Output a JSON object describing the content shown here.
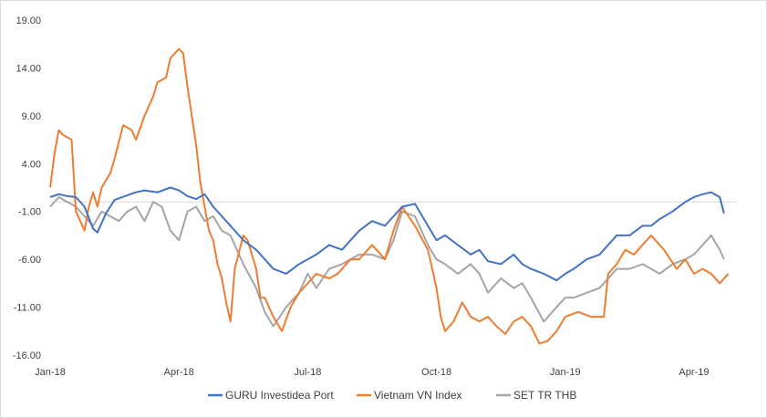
{
  "chart_data": {
    "type": "line",
    "title": "",
    "xlabel": "",
    "ylabel": "",
    "ylim": [
      -16,
      19
    ],
    "yticks": [
      19.0,
      14.0,
      9.0,
      4.0,
      -1.0,
      -6.0,
      -11.0,
      -16.0
    ],
    "ytick_labels": [
      "19.00",
      "14.00",
      "9.00",
      "4.00",
      "-1.00",
      "-6.00",
      "-11.00",
      "-16.00"
    ],
    "xlim": [
      0,
      16
    ],
    "xticks": [
      0,
      3,
      6,
      9,
      12,
      15
    ],
    "xtick_labels": [
      "Jan-18",
      "Apr-18",
      "Jul-18",
      "Oct-18",
      "Jan-19",
      "Apr-19"
    ],
    "zero_line": 0,
    "legend_position": "bottom",
    "colors": [
      "#4472C4",
      "#ED7D31",
      "#A5A5A5"
    ],
    "series": [
      {
        "name": "GURU Investidea Port",
        "color": "#4472C4",
        "x": [
          0,
          0.2,
          0.4,
          0.6,
          0.8,
          1.0,
          1.1,
          1.3,
          1.5,
          1.8,
          2.0,
          2.2,
          2.5,
          2.8,
          3.0,
          3.2,
          3.4,
          3.6,
          3.8,
          4.0,
          4.2,
          4.5,
          4.8,
          5.0,
          5.2,
          5.5,
          5.8,
          6.0,
          6.2,
          6.5,
          6.8,
          7.0,
          7.2,
          7.5,
          7.8,
          8.0,
          8.2,
          8.5,
          8.8,
          9.0,
          9.2,
          9.5,
          9.8,
          10.0,
          10.2,
          10.5,
          10.8,
          11.0,
          11.2,
          11.5,
          11.8,
          12.0,
          12.2,
          12.5,
          12.8,
          13.0,
          13.2,
          13.5,
          13.8,
          14.0,
          14.2,
          14.5,
          14.8,
          15.0,
          15.2,
          15.4,
          15.6,
          15.7
        ],
        "values": [
          0.5,
          0.8,
          0.6,
          0.5,
          -0.5,
          -2.8,
          -3.2,
          -1.2,
          0.2,
          0.7,
          1.0,
          1.2,
          1.0,
          1.5,
          1.2,
          0.6,
          0.3,
          0.8,
          -0.5,
          -1.5,
          -2.5,
          -4.0,
          -5.0,
          -6.0,
          -7.0,
          -7.5,
          -6.5,
          -6.0,
          -5.5,
          -4.5,
          -5.0,
          -4.0,
          -3.0,
          -2.0,
          -2.5,
          -1.5,
          -0.5,
          -0.2,
          -2.5,
          -4.0,
          -3.5,
          -4.5,
          -5.5,
          -5.0,
          -6.2,
          -6.5,
          -5.5,
          -6.5,
          -7.0,
          -7.5,
          -8.2,
          -7.5,
          -7.0,
          -6.0,
          -5.5,
          -4.5,
          -3.5,
          -3.5,
          -2.5,
          -2.5,
          -1.8,
          -1.0,
          0.0,
          0.5,
          0.8,
          1.0,
          0.5,
          -1.2
        ]
      },
      {
        "name": "Vietnam VN Index",
        "color": "#ED7D31",
        "x": [
          0,
          0.1,
          0.2,
          0.3,
          0.5,
          0.6,
          0.8,
          0.9,
          1.0,
          1.1,
          1.2,
          1.4,
          1.5,
          1.7,
          1.9,
          2.0,
          2.2,
          2.4,
          2.5,
          2.7,
          2.8,
          3.0,
          3.1,
          3.2,
          3.3,
          3.4,
          3.5,
          3.6,
          3.7,
          3.8,
          3.9,
          4.0,
          4.1,
          4.2,
          4.3,
          4.5,
          4.6,
          4.8,
          4.9,
          5.0,
          5.2,
          5.4,
          5.6,
          5.8,
          6.0,
          6.2,
          6.5,
          6.7,
          6.8,
          7.0,
          7.2,
          7.5,
          7.8,
          8.0,
          8.2,
          8.5,
          8.8,
          9.0,
          9.1,
          9.2,
          9.4,
          9.6,
          9.8,
          10.0,
          10.2,
          10.4,
          10.6,
          10.8,
          11.0,
          11.2,
          11.4,
          11.6,
          11.8,
          12.0,
          12.3,
          12.6,
          12.9,
          13.0,
          13.2,
          13.4,
          13.6,
          13.8,
          14.0,
          14.3,
          14.6,
          14.8,
          15.0,
          15.2,
          15.4,
          15.6,
          15.8
        ],
        "values": [
          1.5,
          5.0,
          7.5,
          7.0,
          6.5,
          -1.0,
          -3.0,
          -0.5,
          1.0,
          -0.5,
          1.5,
          3.0,
          4.5,
          8.0,
          7.5,
          6.5,
          9.0,
          11.0,
          12.5,
          13.0,
          15.0,
          16.0,
          15.5,
          12.0,
          9.0,
          6.0,
          2.0,
          -0.5,
          -3.0,
          -4.0,
          -6.5,
          -8.0,
          -10.5,
          -12.5,
          -7.0,
          -3.5,
          -4.0,
          -7.0,
          -10.0,
          -10.0,
          -12.0,
          -13.5,
          -11.0,
          -9.5,
          -8.5,
          -7.5,
          -8.0,
          -7.5,
          -7.0,
          -6.0,
          -6.0,
          -4.5,
          -6.0,
          -3.0,
          -0.5,
          -2.5,
          -5.0,
          -9.0,
          -12.0,
          -13.5,
          -12.5,
          -10.5,
          -12.0,
          -12.5,
          -12.0,
          -13.0,
          -13.8,
          -12.5,
          -12.0,
          -13.0,
          -14.8,
          -14.5,
          -13.5,
          -12.0,
          -11.5,
          -12.0,
          -12.0,
          -7.5,
          -6.5,
          -5.0,
          -5.5,
          -4.5,
          -3.5,
          -5.0,
          -7.0,
          -6.0,
          -7.5,
          -7.0,
          -7.5,
          -8.5,
          -7.5
        ]
      },
      {
        "name": "SET TR THB",
        "color": "#A5A5A5",
        "x": [
          0,
          0.2,
          0.4,
          0.6,
          0.8,
          1.0,
          1.2,
          1.4,
          1.6,
          1.8,
          2.0,
          2.2,
          2.4,
          2.6,
          2.8,
          3.0,
          3.2,
          3.4,
          3.6,
          3.8,
          4.0,
          4.2,
          4.5,
          4.8,
          5.0,
          5.2,
          5.5,
          5.8,
          6.0,
          6.2,
          6.5,
          6.8,
          7.0,
          7.2,
          7.5,
          7.8,
          8.0,
          8.2,
          8.5,
          8.8,
          9.0,
          9.2,
          9.5,
          9.8,
          10.0,
          10.2,
          10.5,
          10.8,
          11.0,
          11.2,
          11.5,
          11.8,
          12.0,
          12.2,
          12.5,
          12.8,
          13.0,
          13.2,
          13.5,
          13.8,
          14.0,
          14.2,
          14.5,
          14.8,
          15.0,
          15.2,
          15.4,
          15.6,
          15.7
        ],
        "values": [
          -0.5,
          0.5,
          0.0,
          -0.5,
          -1.5,
          -2.5,
          -1.0,
          -1.5,
          -2.0,
          -1.0,
          -0.5,
          -2.0,
          0.0,
          -0.5,
          -3.0,
          -4.0,
          -1.0,
          -0.5,
          -2.0,
          -1.5,
          -3.0,
          -3.5,
          -6.5,
          -9.0,
          -11.5,
          -13.0,
          -11.0,
          -9.5,
          -7.5,
          -9.0,
          -7.0,
          -6.5,
          -6.0,
          -5.5,
          -5.5,
          -6.0,
          -4.0,
          -1.0,
          -1.5,
          -4.5,
          -6.0,
          -6.5,
          -7.5,
          -6.5,
          -7.5,
          -9.5,
          -8.0,
          -9.0,
          -8.5,
          -10.0,
          -12.5,
          -11.0,
          -10.0,
          -10.0,
          -9.5,
          -9.0,
          -8.0,
          -7.0,
          -7.0,
          -6.5,
          -7.0,
          -7.5,
          -6.5,
          -6.0,
          -5.5,
          -4.5,
          -3.5,
          -5.0,
          -6.0
        ]
      }
    ]
  }
}
